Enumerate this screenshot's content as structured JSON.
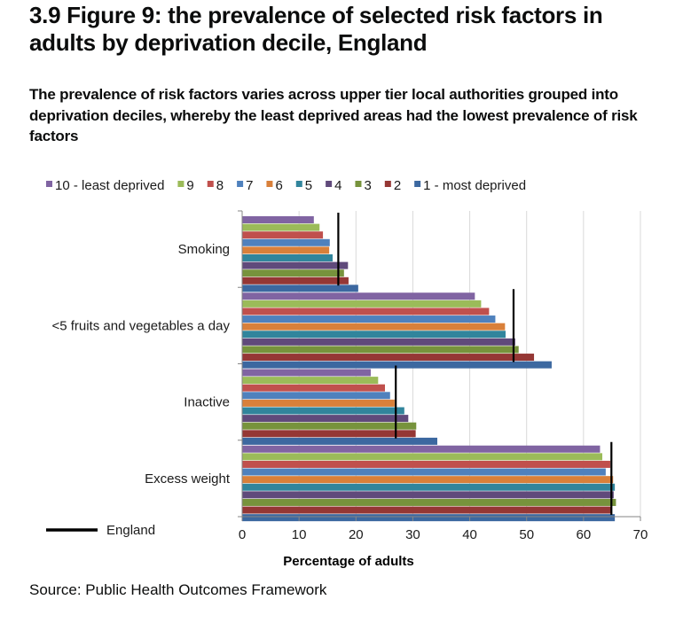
{
  "page": {
    "title": "3.9 Figure 9: the prevalence of selected risk factors in adults by deprivation decile, England",
    "subtitle": "The prevalence of risk factors varies across upper tier local authorities grouped into deprivation deciles, whereby the least deprived areas had the lowest prevalence of risk factors",
    "source": "Source: Public Health Outcomes Framework"
  },
  "chart_data": {
    "type": "bar",
    "orientation": "horizontal",
    "title": "3.9 Figure 9: the prevalence of selected risk factors in adults by deprivation decile, England",
    "xlabel": "Percentage of adults",
    "ylabel": "",
    "xlim": [
      0,
      70
    ],
    "xticks": [
      "0",
      "10",
      "20",
      "30",
      "40",
      "50",
      "60",
      "70"
    ],
    "xtick_values": [
      0,
      10,
      20,
      30,
      40,
      50,
      60,
      70
    ],
    "grid": true,
    "legend_position": "top",
    "categories": [
      "Smoking",
      "<5 fruits and vegetables a day",
      "Inactive",
      "Excess weight"
    ],
    "series": [
      {
        "name": "10 -  least deprived",
        "color": "#8064a2",
        "values": [
          12.6,
          40.9,
          22.6,
          62.9
        ]
      },
      {
        "name": "9",
        "color": "#9bbb59",
        "values": [
          13.6,
          42.0,
          23.9,
          63.3
        ]
      },
      {
        "name": "8",
        "color": "#c0504d",
        "values": [
          14.2,
          43.4,
          25.1,
          64.7
        ]
      },
      {
        "name": "7",
        "color": "#4f81bd",
        "values": [
          15.4,
          44.5,
          26.0,
          63.9
        ]
      },
      {
        "name": "6",
        "color": "#d9803a",
        "values": [
          15.3,
          46.2,
          26.8,
          65.2
        ]
      },
      {
        "name": "5",
        "color": "#31859c",
        "values": [
          15.9,
          46.3,
          28.5,
          65.5
        ]
      },
      {
        "name": "4",
        "color": "#604a7b",
        "values": [
          18.6,
          48.0,
          29.2,
          65.3
        ]
      },
      {
        "name": "3",
        "color": "#77933c",
        "values": [
          17.9,
          48.6,
          30.6,
          65.7
        ]
      },
      {
        "name": "2",
        "color": "#953735",
        "values": [
          18.7,
          51.3,
          30.5,
          64.9
        ]
      },
      {
        "name": "1 - most deprived",
        "color": "#3c68a0",
        "values": [
          20.4,
          54.4,
          34.3,
          65.5
        ]
      }
    ],
    "reference": {
      "name": "England",
      "color": "#000000",
      "values": [
        16.9,
        47.7,
        27.0,
        64.9
      ]
    }
  }
}
